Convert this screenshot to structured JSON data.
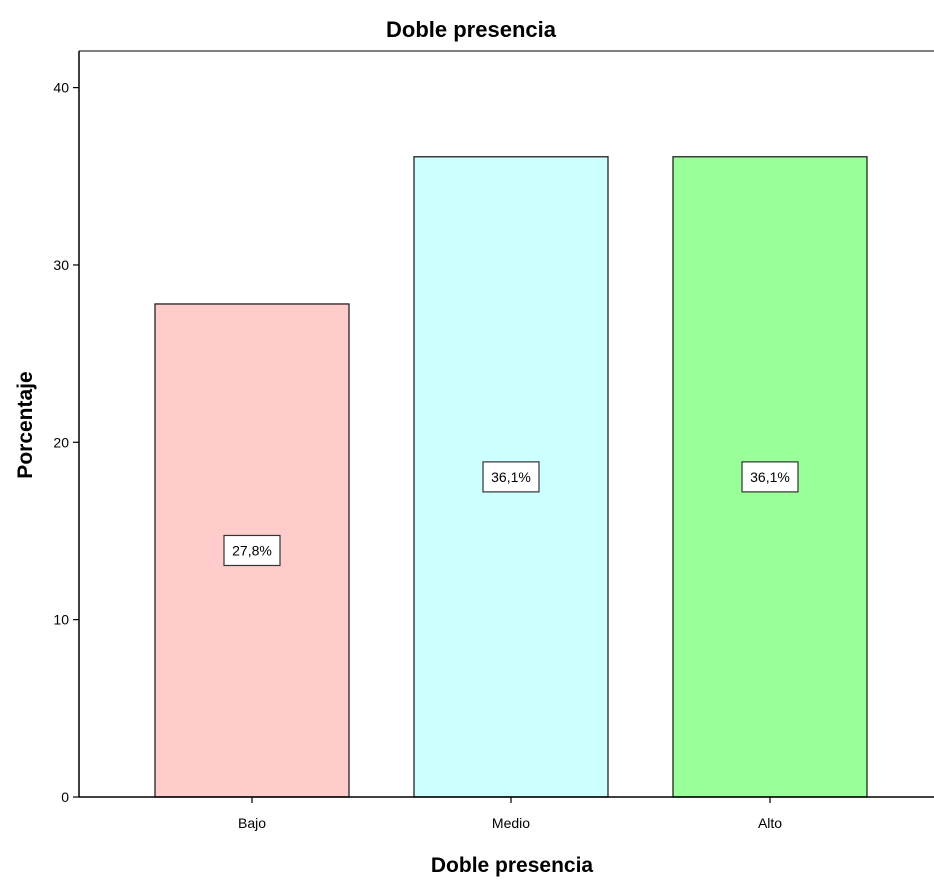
{
  "chart_data": {
    "type": "bar",
    "title": "Doble presencia",
    "xlabel": "Doble presencia",
    "ylabel": "Porcentaje",
    "categories": [
      "Bajo",
      "Medio",
      "Alto"
    ],
    "values": [
      27.8,
      36.1,
      36.1
    ],
    "data_labels": [
      "27,8%",
      "36,1%",
      "36,1%"
    ],
    "colors": [
      "#ffcccc",
      "#ccffff",
      "#99ff99"
    ],
    "ylim": [
      0,
      42
    ],
    "yticks": [
      0,
      10,
      20,
      30,
      40
    ],
    "ytick_labels": [
      "0",
      "10",
      "20",
      "30",
      "40"
    ],
    "grid": false,
    "legend": false
  }
}
